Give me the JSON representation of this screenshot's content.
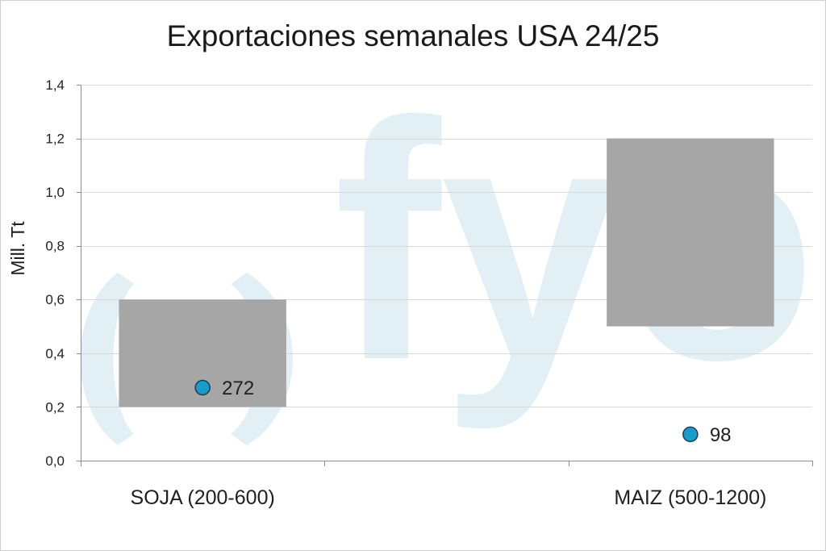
{
  "watermark": {
    "text": "fyo",
    "color": "#e2f0f5"
  },
  "chart_data": {
    "type": "bar",
    "title": "Exportaciones semanales USA 24/25",
    "ylabel": "Mill. Tt",
    "ylim": [
      0,
      1.4
    ],
    "yticks": [
      0,
      0.2,
      0.4,
      0.6,
      0.8,
      1.0,
      1.2,
      1.4
    ],
    "ytick_labels": [
      "0,0",
      "0,2",
      "0,4",
      "0,6",
      "0,8",
      "1,0",
      "1,2",
      "1,4"
    ],
    "categories": [
      "SOJA (200-600)",
      "",
      "MAIZ (500-1200)"
    ],
    "series": [
      {
        "type": "floating-bar",
        "low": [
          0.2,
          null,
          0.5
        ],
        "high": [
          0.6,
          null,
          1.2
        ],
        "color": "#a6a6a6"
      },
      {
        "type": "scatter",
        "values": [
          0.272,
          null,
          0.098
        ],
        "labels": [
          "272",
          "",
          "98"
        ],
        "color": "#1a9cc8",
        "edge_color": "#1f3b56"
      }
    ],
    "grid": true,
    "grid_color": "#d9d9d9",
    "axis_color": "#8c8c8c",
    "legend": "none"
  }
}
